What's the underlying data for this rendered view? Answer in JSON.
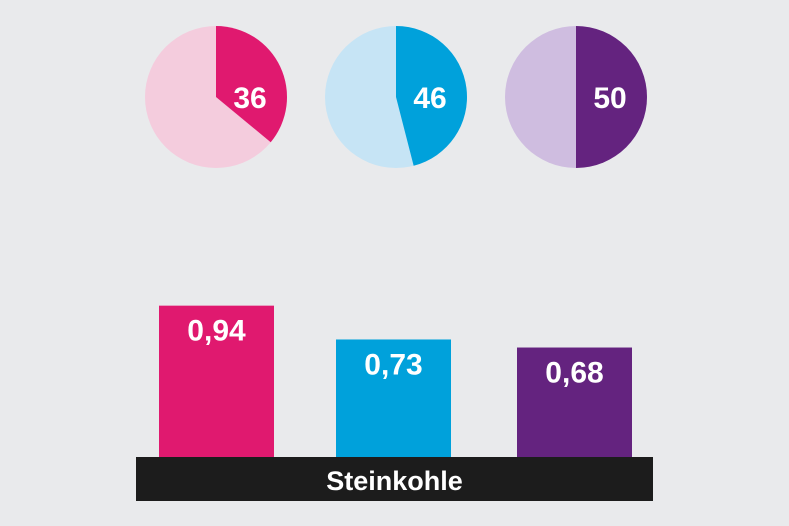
{
  "chart_data": [
    {
      "type": "pie",
      "charts": [
        {
          "value": 36,
          "label": "36",
          "color": "#e0196f",
          "background": "#f4ccdd"
        },
        {
          "value": 46,
          "label": "46",
          "color": "#00a1db",
          "background": "#c6e4f5"
        },
        {
          "value": 50,
          "label": "50",
          "color": "#64237f",
          "background": "#cfbde0"
        }
      ],
      "max": 100
    },
    {
      "type": "bar",
      "values": [
        0.94,
        0.73,
        0.68
      ],
      "labels": [
        "0,94",
        "0,73",
        "0,68"
      ],
      "colors": [
        "#e0196f",
        "#00a1db",
        "#64237f"
      ],
      "ylim": [
        0,
        1
      ],
      "category": "Steinkohle"
    }
  ],
  "colors": {
    "background": "#e9eaec",
    "baseline": "#1c1c1c"
  }
}
